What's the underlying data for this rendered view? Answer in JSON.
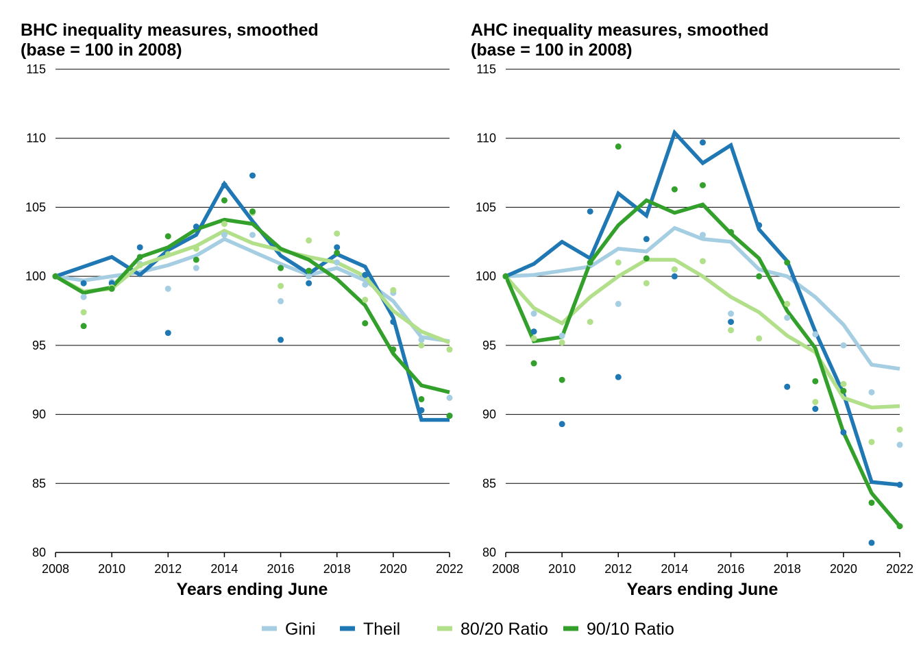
{
  "legend": {
    "placement": "bottom",
    "entries": [
      {
        "name": "Gini",
        "color": "#a6cee3"
      },
      {
        "name": "Theil",
        "color": "#1f78b4"
      },
      {
        "name": "80/20 Ratio",
        "color": "#b2df8a"
      },
      {
        "name": "90/10 Ratio",
        "color": "#33a02c"
      }
    ]
  },
  "chart_data": [
    {
      "type": "line",
      "title_line1": "BHC inequality measures, smoothed",
      "title_line2": "(base = 100 in 2008)",
      "xlabel": "Years ending June",
      "ylabel": "",
      "xlim": [
        2008,
        2022
      ],
      "ylim": [
        80,
        115
      ],
      "xticks": [
        "2008",
        "2010",
        "2012",
        "2014",
        "2016",
        "2018",
        "2020",
        "2022"
      ],
      "yticks": [
        "80",
        "85",
        "90",
        "95",
        "100",
        "105",
        "110",
        "115"
      ],
      "grid": "horizontal",
      "x": [
        2008,
        2009,
        2010,
        2011,
        2012,
        2013,
        2014,
        2015,
        2016,
        2017,
        2018,
        2019,
        2020,
        2021,
        2022
      ],
      "series": [
        {
          "name": "Gini",
          "color": "#a6cee3",
          "smoothed": [
            100,
            99.7,
            100.0,
            100.3,
            100.8,
            101.5,
            102.7,
            101.8,
            100.9,
            100.1,
            100.6,
            99.7,
            98.2,
            95.6,
            95.3
          ],
          "points": [
            100,
            98.5,
            99.6,
            100.9,
            99.1,
            100.6,
            103.0,
            103.0,
            98.2,
            100.0,
            101.0,
            99.4,
            98.8,
            95.4,
            91.2
          ]
        },
        {
          "name": "Theil",
          "color": "#1f78b4",
          "smoothed": [
            100,
            100.7,
            101.4,
            100.1,
            101.9,
            103.0,
            106.7,
            104.0,
            101.5,
            100.2,
            101.6,
            100.7,
            97.0,
            89.6,
            89.6
          ],
          "points": [
            100,
            99.5,
            99.5,
            102.1,
            95.9,
            103.6,
            106.6,
            107.3,
            95.4,
            99.5,
            102.1,
            100.1,
            96.7,
            90.3,
            89.9
          ]
        },
        {
          "name": "80/20 Ratio",
          "color": "#b2df8a",
          "smoothed": [
            100,
            98.9,
            99.1,
            100.8,
            101.5,
            102.2,
            103.3,
            102.4,
            101.9,
            101.4,
            101.0,
            100.0,
            97.5,
            96.0,
            95.2
          ],
          "points": [
            100,
            97.4,
            99.2,
            100.8,
            101.6,
            102.0,
            103.8,
            104.6,
            99.3,
            102.6,
            103.1,
            98.3,
            99.0,
            95.0,
            94.7
          ]
        },
        {
          "name": "90/10 Ratio",
          "color": "#33a02c",
          "smoothed": [
            100,
            98.8,
            99.2,
            101.4,
            102.1,
            103.4,
            104.1,
            103.8,
            102.0,
            101.2,
            99.8,
            97.9,
            94.4,
            92.1,
            91.6
          ]
        },
        {
          "name": "90/10 Ratio points",
          "color": "#33a02c",
          "points": [
            100,
            96.4,
            99.1,
            101.4,
            102.9,
            101.2,
            105.5,
            104.7,
            100.6,
            100.4,
            101.7,
            96.6,
            94.7,
            91.1,
            89.9
          ]
        }
      ]
    },
    {
      "type": "line",
      "title_line1": "AHC inequality measures, smoothed",
      "title_line2": "(base = 100 in 2008)",
      "xlabel": "Years ending June",
      "ylabel": "",
      "xlim": [
        2008,
        2022
      ],
      "ylim": [
        80,
        115
      ],
      "xticks": [
        "2008",
        "2010",
        "2012",
        "2014",
        "2016",
        "2018",
        "2020",
        "2022"
      ],
      "yticks": [
        "80",
        "85",
        "90",
        "95",
        "100",
        "105",
        "110",
        "115"
      ],
      "grid": "horizontal",
      "x": [
        2008,
        2009,
        2010,
        2011,
        2012,
        2013,
        2014,
        2015,
        2016,
        2017,
        2018,
        2019,
        2020,
        2021,
        2022
      ],
      "series": [
        {
          "name": "Gini",
          "color": "#a6cee3",
          "smoothed": [
            100,
            100.1,
            100.4,
            100.7,
            102.0,
            101.8,
            103.5,
            102.7,
            102.5,
            100.5,
            100.0,
            98.5,
            96.5,
            93.6,
            93.3
          ],
          "points": [
            100,
            97.3,
            95.7,
            100.9,
            98.0,
            101.3,
            100.5,
            103.0,
            97.3,
            100.0,
            97.0,
            95.8,
            95.0,
            91.6,
            87.8
          ]
        },
        {
          "name": "Theil",
          "color": "#1f78b4",
          "smoothed": [
            100,
            100.9,
            102.5,
            101.3,
            106.0,
            104.4,
            110.4,
            108.2,
            109.5,
            103.4,
            101.1,
            96.0,
            91.5,
            85.1,
            84.9
          ],
          "points": [
            100,
            96.0,
            89.3,
            104.7,
            92.7,
            102.7,
            100.0,
            109.7,
            96.7,
            103.7,
            92.0,
            90.4,
            88.7,
            80.7,
            84.9
          ]
        },
        {
          "name": "80/20 Ratio",
          "color": "#b2df8a",
          "smoothed": [
            100,
            97.7,
            96.6,
            98.5,
            100.0,
            101.2,
            101.2,
            100.0,
            98.5,
            97.4,
            95.7,
            94.5,
            91.2,
            90.5,
            90.6
          ],
          "points": [
            100,
            95.5,
            95.2,
            96.7,
            101.0,
            99.5,
            100.5,
            101.1,
            96.1,
            95.5,
            98.0,
            90.9,
            92.2,
            88.0,
            88.9
          ]
        },
        {
          "name": "90/10 Ratio",
          "color": "#33a02c",
          "smoothed": [
            100,
            95.3,
            95.6,
            101.0,
            103.7,
            105.5,
            104.6,
            105.2,
            103.1,
            101.3,
            97.5,
            94.8,
            88.7,
            84.3,
            81.9
          ]
        },
        {
          "name": "90/10 Ratio points",
          "color": "#33a02c",
          "points": [
            100,
            93.7,
            92.5,
            101.0,
            109.4,
            101.3,
            106.3,
            106.6,
            103.2,
            100.0,
            101.0,
            92.4,
            91.7,
            83.6,
            81.9
          ]
        }
      ]
    }
  ]
}
